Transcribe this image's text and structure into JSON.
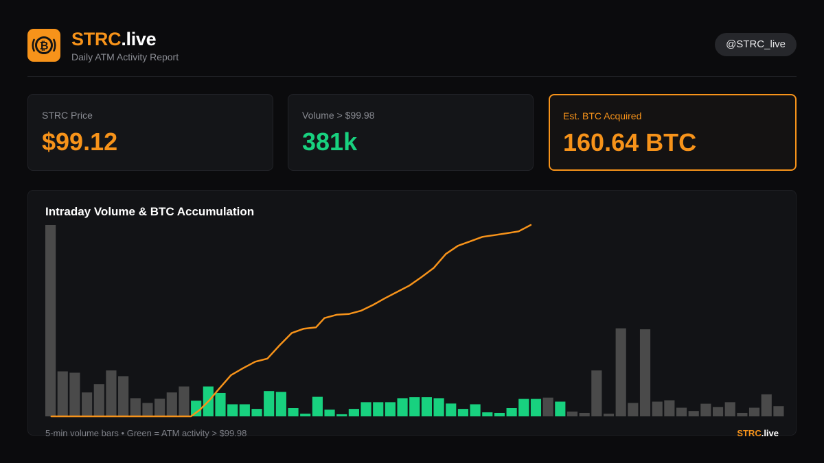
{
  "header": {
    "brand_accent": "STRC",
    "brand_rest": ".live",
    "subtitle": "Daily ATM Activity Report",
    "handle": "@STRC_live",
    "logo_icon": "bitcoin-icon"
  },
  "stats": [
    {
      "label": "STRC Price",
      "value": "$99.12"
    },
    {
      "label": "Volume > $99.98",
      "value": "381k"
    },
    {
      "label": "Est. BTC Acquired",
      "value": "160.64 BTC"
    }
  ],
  "colors": {
    "accent": "#f7931a",
    "green": "#18d17f",
    "gray_bar": "#4a4a4a",
    "background": "#0b0b0d"
  },
  "chart_data": {
    "type": "bar",
    "title": "Intraday Volume & BTC Accumulation",
    "xlabel": "",
    "ylabel": "",
    "grid": false,
    "volume_ylim": [
      0,
      100
    ],
    "btc_ylim": [
      0,
      160.64
    ],
    "bars": [
      {
        "v": 100,
        "atm": false
      },
      {
        "v": 23.5,
        "atm": false
      },
      {
        "v": 22.8,
        "atm": false
      },
      {
        "v": 12.5,
        "atm": false
      },
      {
        "v": 16.8,
        "atm": false
      },
      {
        "v": 24,
        "atm": false
      },
      {
        "v": 21,
        "atm": false
      },
      {
        "v": 9.5,
        "atm": false
      },
      {
        "v": 7,
        "atm": false
      },
      {
        "v": 9.2,
        "atm": false
      },
      {
        "v": 12.5,
        "atm": false
      },
      {
        "v": 15.6,
        "atm": false
      },
      {
        "v": 8.2,
        "atm": true
      },
      {
        "v": 15.6,
        "atm": true
      },
      {
        "v": 12.2,
        "atm": true
      },
      {
        "v": 6.3,
        "atm": true
      },
      {
        "v": 6.3,
        "atm": true
      },
      {
        "v": 3.9,
        "atm": true
      },
      {
        "v": 13.2,
        "atm": true
      },
      {
        "v": 12.8,
        "atm": true
      },
      {
        "v": 4.3,
        "atm": true
      },
      {
        "v": 1.4,
        "atm": true
      },
      {
        "v": 10.2,
        "atm": true
      },
      {
        "v": 3.5,
        "atm": true
      },
      {
        "v": 1.1,
        "atm": true
      },
      {
        "v": 3.9,
        "atm": true
      },
      {
        "v": 7.4,
        "atm": true
      },
      {
        "v": 7.4,
        "atm": true
      },
      {
        "v": 7.4,
        "atm": true
      },
      {
        "v": 9.5,
        "atm": true
      },
      {
        "v": 10,
        "atm": true
      },
      {
        "v": 10,
        "atm": true
      },
      {
        "v": 9.5,
        "atm": true
      },
      {
        "v": 6.7,
        "atm": true
      },
      {
        "v": 3.9,
        "atm": true
      },
      {
        "v": 6.3,
        "atm": true
      },
      {
        "v": 2.1,
        "atm": true
      },
      {
        "v": 1.8,
        "atm": true
      },
      {
        "v": 4.3,
        "atm": true
      },
      {
        "v": 9.1,
        "atm": true
      },
      {
        "v": 9.1,
        "atm": true
      },
      {
        "v": 9.8,
        "atm": false
      },
      {
        "v": 7.7,
        "atm": true
      },
      {
        "v": 2.5,
        "atm": false
      },
      {
        "v": 1.8,
        "atm": false
      },
      {
        "v": 24,
        "atm": false
      },
      {
        "v": 1.4,
        "atm": false
      },
      {
        "v": 46,
        "atm": false
      },
      {
        "v": 7,
        "atm": false
      },
      {
        "v": 45.5,
        "atm": false
      },
      {
        "v": 7.7,
        "atm": false
      },
      {
        "v": 8.4,
        "atm": false
      },
      {
        "v": 4.5,
        "atm": false
      },
      {
        "v": 2.8,
        "atm": false
      },
      {
        "v": 6.6,
        "atm": false
      },
      {
        "v": 4.9,
        "atm": false
      },
      {
        "v": 7.4,
        "atm": false
      },
      {
        "v": 1.8,
        "atm": false
      },
      {
        "v": 4.5,
        "atm": false
      },
      {
        "v": 11.5,
        "atm": false
      },
      {
        "v": 5.3,
        "atm": false
      }
    ],
    "btc_cumulative": [
      {
        "i": 0,
        "btc": 0
      },
      {
        "i": 11.5,
        "btc": 0
      },
      {
        "i": 12.2,
        "btc": 5.2
      },
      {
        "i": 13,
        "btc": 13.3
      },
      {
        "i": 13.8,
        "btc": 22.9
      },
      {
        "i": 14.8,
        "btc": 34.6
      },
      {
        "i": 15.8,
        "btc": 40.5
      },
      {
        "i": 16.8,
        "btc": 45.9
      },
      {
        "i": 17.8,
        "btc": 48.5
      },
      {
        "i": 18.8,
        "btc": 59.6
      },
      {
        "i": 19.8,
        "btc": 69.9
      },
      {
        "i": 20.8,
        "btc": 73.6
      },
      {
        "i": 21.8,
        "btc": 74.7
      },
      {
        "i": 22.5,
        "btc": 82.5
      },
      {
        "i": 23.5,
        "btc": 85.3
      },
      {
        "i": 24.5,
        "btc": 85.9
      },
      {
        "i": 25.5,
        "btc": 88.6
      },
      {
        "i": 26.5,
        "btc": 93.5
      },
      {
        "i": 27.5,
        "btc": 99.2
      },
      {
        "i": 28.5,
        "btc": 104.5
      },
      {
        "i": 29.5,
        "btc": 109.8
      },
      {
        "i": 30.5,
        "btc": 116.9
      },
      {
        "i": 31.5,
        "btc": 124.5
      },
      {
        "i": 32.5,
        "btc": 136.3
      },
      {
        "i": 33.5,
        "btc": 143.2
      },
      {
        "i": 34.5,
        "btc": 146.9
      },
      {
        "i": 35.5,
        "btc": 150.6
      },
      {
        "i": 36.5,
        "btc": 152.1
      },
      {
        "i": 37.5,
        "btc": 153.7
      },
      {
        "i": 38.5,
        "btc": 155.3
      },
      {
        "i": 39.5,
        "btc": 160.64
      }
    ],
    "footnote": "5-min volume bars • Green = ATM activity > $99.98",
    "footer_brand_accent": "STRC",
    "footer_brand_rest": ".live"
  }
}
